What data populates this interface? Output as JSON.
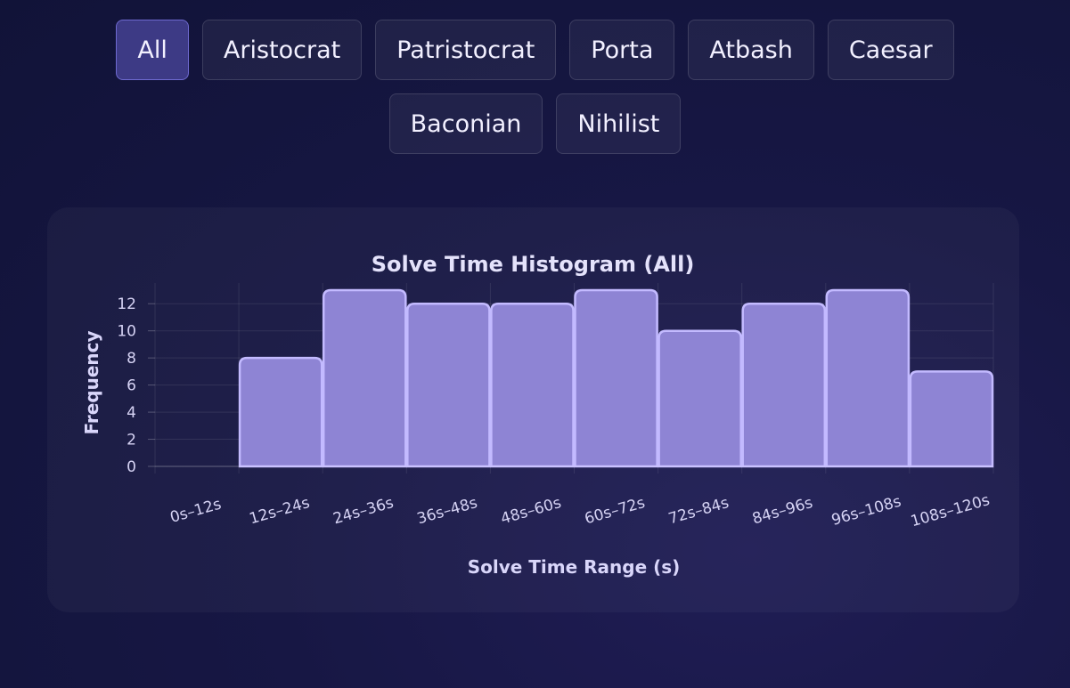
{
  "filters": {
    "active": "All",
    "items": [
      {
        "key": "all",
        "label": "All"
      },
      {
        "key": "aristocrat",
        "label": "Aristocrat"
      },
      {
        "key": "patristocrat",
        "label": "Patristocrat"
      },
      {
        "key": "porta",
        "label": "Porta"
      },
      {
        "key": "atbash",
        "label": "Atbash"
      },
      {
        "key": "caesar",
        "label": "Caesar"
      },
      {
        "key": "baconian",
        "label": "Baconian"
      },
      {
        "key": "nihilist",
        "label": "Nihilist"
      }
    ]
  },
  "colors": {
    "bar_fill": "#8e84d4",
    "bar_stroke": "#c3baff",
    "active_filter_bg": "#3d3a85",
    "active_filter_border": "#6e69cf"
  },
  "chart_data": {
    "type": "bar",
    "title": "Solve Time Histogram (All)",
    "xlabel": "Solve Time Range (s)",
    "ylabel": "Frequency",
    "categories": [
      "0s–12s",
      "12s–24s",
      "24s–36s",
      "36s–48s",
      "48s–60s",
      "60s–72s",
      "72s–84s",
      "84s–96s",
      "96s–108s",
      "108s–120s"
    ],
    "values": [
      0,
      8,
      13,
      12,
      12,
      13,
      10,
      12,
      13,
      7
    ],
    "ylim": [
      0,
      13
    ],
    "yticks": [
      0,
      2,
      4,
      6,
      8,
      10,
      12
    ],
    "grid": true,
    "legend": "none"
  }
}
